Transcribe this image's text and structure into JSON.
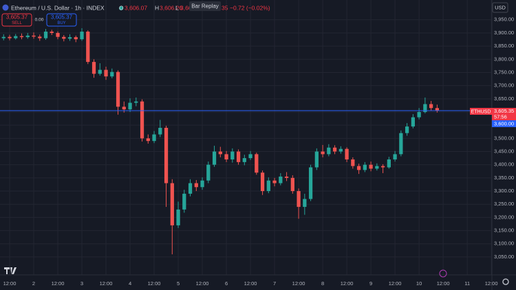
{
  "header": {
    "symbol": "Ethereum / U.S. Dollar · 1h · INDEX",
    "o_key": "O",
    "open": "3,606.07",
    "h_key": "H",
    "high": "3,606.26",
    "l_key": "L",
    "low": "3,60",
    "close_tail": "35",
    "change": "−0.72 (−0.02%)",
    "tooltip": "Bar Replay"
  },
  "trade": {
    "sell_price": "3,605.37",
    "sell": "SELL",
    "spread": "0.00",
    "buy_price": "3,605.37",
    "buy": "BUY"
  },
  "price_axis": {
    "currency": "USD",
    "symbol_tag": "ETHUSD",
    "countdown": "57:56",
    "level": "3,600.00"
  },
  "chart_data": {
    "type": "candlestick",
    "x": [
      9,
      12,
      15,
      18,
      21,
      24,
      27,
      30,
      33,
      36,
      39,
      42,
      45,
      48,
      51,
      54,
      57,
      60,
      63,
      66,
      69,
      72,
      75,
      78,
      81,
      84,
      87,
      90,
      93,
      96,
      99,
      102,
      105,
      108,
      111,
      114,
      117,
      120,
      123,
      126,
      129,
      132,
      135,
      138,
      141,
      144,
      147,
      150,
      153,
      156,
      159,
      162,
      165,
      168,
      171,
      174,
      177,
      180,
      183,
      186,
      189,
      192,
      195,
      198,
      201,
      204,
      207,
      210,
      213,
      216,
      219,
      222,
      225
    ],
    "open": [
      3880,
      3885,
      3880,
      3888,
      3884,
      3890,
      3886,
      3880,
      3905,
      3900,
      3885,
      3878,
      3884,
      3876,
      3905,
      3790,
      3745,
      3760,
      3735,
      3752,
      3620,
      3610,
      3635,
      3640,
      3500,
      3490,
      3515,
      3540,
      3330,
      3170,
      3230,
      3290,
      3330,
      3315,
      3340,
      3400,
      3450,
      3440,
      3420,
      3450,
      3410,
      3425,
      3440,
      3370,
      3300,
      3340,
      3330,
      3355,
      3350,
      3300,
      3240,
      3270,
      3390,
      3450,
      3440,
      3465,
      3450,
      3460,
      3420,
      3395,
      3380,
      3400,
      3385,
      3395,
      3390,
      3420,
      3440,
      3520,
      3545,
      3580,
      3600,
      3630,
      3615
    ],
    "high": [
      3895,
      3893,
      3896,
      3898,
      3900,
      3902,
      3894,
      3915,
      3912,
      3906,
      3892,
      3895,
      3890,
      3918,
      3910,
      3800,
      3785,
      3772,
      3765,
      3758,
      3640,
      3652,
      3655,
      3648,
      3515,
      3528,
      3570,
      3548,
      3345,
      3260,
      3305,
      3345,
      3342,
      3352,
      3412,
      3472,
      3468,
      3452,
      3462,
      3458,
      3438,
      3452,
      3446,
      3378,
      3352,
      3350,
      3368,
      3372,
      3360,
      3310,
      3290,
      3400,
      3462,
      3475,
      3478,
      3474,
      3470,
      3466,
      3428,
      3404,
      3410,
      3412,
      3405,
      3402,
      3430,
      3452,
      3530,
      3558,
      3592,
      3615,
      3655,
      3642,
      3628
    ],
    "low": [
      3872,
      3872,
      3875,
      3876,
      3878,
      3878,
      3870,
      3874,
      3892,
      3876,
      3868,
      3870,
      3865,
      3870,
      3782,
      3730,
      3738,
      3722,
      3728,
      3590,
      3598,
      3600,
      3622,
      3488,
      3480,
      3482,
      3505,
      3240,
      3060,
      3160,
      3218,
      3280,
      3300,
      3305,
      3330,
      3392,
      3428,
      3410,
      3408,
      3400,
      3398,
      3418,
      3362,
      3285,
      3292,
      3318,
      3322,
      3338,
      3290,
      3195,
      3210,
      3262,
      3380,
      3428,
      3432,
      3440,
      3442,
      3410,
      3385,
      3365,
      3372,
      3375,
      3378,
      3368,
      3385,
      3412,
      3432,
      3510,
      3538,
      3572,
      3595,
      3605,
      3598
    ],
    "close": [
      3885,
      3880,
      3888,
      3884,
      3890,
      3886,
      3880,
      3905,
      3900,
      3885,
      3878,
      3884,
      3876,
      3905,
      3790,
      3745,
      3760,
      3735,
      3752,
      3620,
      3610,
      3635,
      3640,
      3500,
      3490,
      3515,
      3540,
      3330,
      3170,
      3230,
      3290,
      3330,
      3315,
      3340,
      3400,
      3450,
      3440,
      3420,
      3450,
      3410,
      3425,
      3440,
      3370,
      3300,
      3340,
      3330,
      3355,
      3350,
      3300,
      3240,
      3270,
      3390,
      3450,
      3440,
      3465,
      3450,
      3460,
      3420,
      3395,
      3380,
      3400,
      3385,
      3395,
      3390,
      3420,
      3440,
      3520,
      3545,
      3580,
      3600,
      3630,
      3615,
      3606
    ],
    "up_color": "#26a69a",
    "down_color": "#ef5350",
    "last_price": {
      "value": 3605.35,
      "label": "3,605.35"
    },
    "last_price_color": "#2962ff",
    "xlim": [
      7.2,
      252.3
    ],
    "ylim": [
      2982,
      4025
    ],
    "xticks": [
      {
        "value": 12,
        "label": "12:00"
      },
      {
        "value": 24,
        "label": "2"
      },
      {
        "value": 36,
        "label": "12:00"
      },
      {
        "value": 48,
        "label": "3"
      },
      {
        "value": 60,
        "label": "12:00"
      },
      {
        "value": 72,
        "label": "4"
      },
      {
        "value": 84,
        "label": "12:00"
      },
      {
        "value": 96,
        "label": "5"
      },
      {
        "value": 108,
        "label": "12:00"
      },
      {
        "value": 120,
        "label": "6"
      },
      {
        "value": 132,
        "label": "12:00"
      },
      {
        "value": 144,
        "label": "7"
      },
      {
        "value": 156,
        "label": "12:00"
      },
      {
        "value": 168,
        "label": "8"
      },
      {
        "value": 180,
        "label": "12:00"
      },
      {
        "value": 192,
        "label": "9"
      },
      {
        "value": 204,
        "label": "12:00"
      },
      {
        "value": 216,
        "label": "10"
      },
      {
        "value": 228,
        "label": "12:00"
      },
      {
        "value": 240,
        "label": "11"
      },
      {
        "value": 252,
        "label": "12:00"
      }
    ],
    "yticks": [
      {
        "value": 3050,
        "label": "3,050.00"
      },
      {
        "value": 3100,
        "label": "3,100.00"
      },
      {
        "value": 3150,
        "label": "3,150.00"
      },
      {
        "value": 3200,
        "label": "3,200.00"
      },
      {
        "value": 3250,
        "label": "3,250.00"
      },
      {
        "value": 3300,
        "label": "3,300.00"
      },
      {
        "value": 3350,
        "label": "3,350.00"
      },
      {
        "value": 3400,
        "label": "3,400.00"
      },
      {
        "value": 3450,
        "label": "3,450.00"
      },
      {
        "value": 3500,
        "label": "3,500.00"
      },
      {
        "value": 3550,
        "label": "3,550.00"
      },
      {
        "value": 3600,
        "label": "3,600.00"
      },
      {
        "value": 3650,
        "label": "3,650.00"
      },
      {
        "value": 3700,
        "label": "3,700.00"
      },
      {
        "value": 3750,
        "label": "3,750.00"
      },
      {
        "value": 3800,
        "label": "3,800.00"
      },
      {
        "value": 3850,
        "label": "3,850.00"
      },
      {
        "value": 3900,
        "label": "3,900.00"
      },
      {
        "value": 3950,
        "label": "3,950.00"
      }
    ],
    "grid": true
  }
}
